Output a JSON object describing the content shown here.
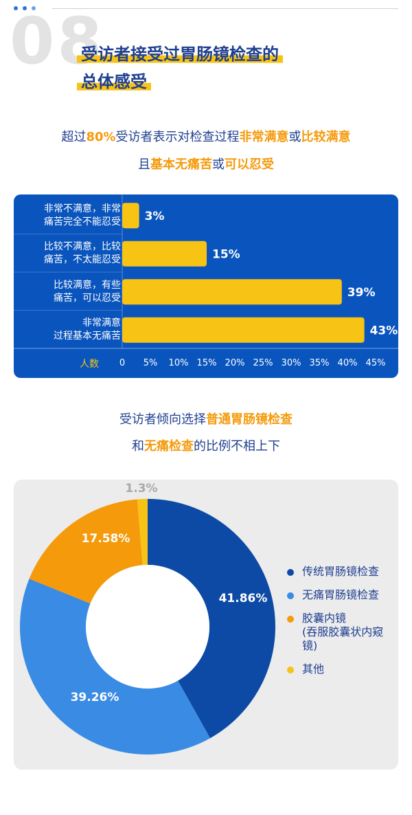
{
  "header": {
    "number": "08",
    "title_line1": "受访者接受过胃肠镜检查的",
    "title_line2": "总体感受"
  },
  "subtitle1": {
    "line1": [
      "超过",
      "80%",
      "受访者表示对检查过程",
      "非常满意",
      "或",
      "比较满意"
    ],
    "line2": [
      "且",
      "基本无痛苦",
      "或",
      "可以忍受"
    ]
  },
  "subtitle2": {
    "line1": [
      "受访者倾向选择",
      "普通胃肠镜检查"
    ],
    "line2": [
      "和",
      "无痛检查",
      "的比例不相上下"
    ]
  },
  "colors": {
    "title": "#1f3f8f",
    "accent": "#f59a0b",
    "highlight": "#f7c315",
    "panel_blue": "#0a55bd"
  },
  "chart_data": [
    {
      "type": "bar",
      "orientation": "horizontal",
      "categories": [
        [
          "非常不满意，非常",
          "痛苦完全不能忍受"
        ],
        [
          "比较不满意，比较",
          "痛苦，不太能忍受"
        ],
        [
          "比较满意，有些",
          "痛苦，可以忍受"
        ],
        [
          "非常满意",
          "过程基本无痛苦"
        ]
      ],
      "values": [
        3,
        15,
        39,
        43
      ],
      "value_labels": [
        "3%",
        "15%",
        "39%",
        "43%"
      ],
      "xlabel": "人数",
      "ticks": [
        "0",
        "5%",
        "10%",
        "15%",
        "20%",
        "25%",
        "30%",
        "35%",
        "40%",
        "45%"
      ],
      "xlim": [
        0,
        45
      ],
      "bar_color": "#f7c315"
    },
    {
      "type": "pie",
      "donut": true,
      "labels": [
        "传统胃肠镜检查",
        "无痛胃肠镜检查",
        "胶囊内镜",
        "其他"
      ],
      "label_sub": [
        "",
        "",
        "(吞服胶囊状内窥镜)",
        ""
      ],
      "values": [
        41.86,
        39.26,
        17.58,
        1.3
      ],
      "value_labels": [
        "41.86%",
        "39.26%",
        "17.58%",
        "1.3%"
      ],
      "colors": [
        "#0d4aa5",
        "#3a8be3",
        "#f59a0b",
        "#f7c315"
      ],
      "legend": "right"
    }
  ]
}
